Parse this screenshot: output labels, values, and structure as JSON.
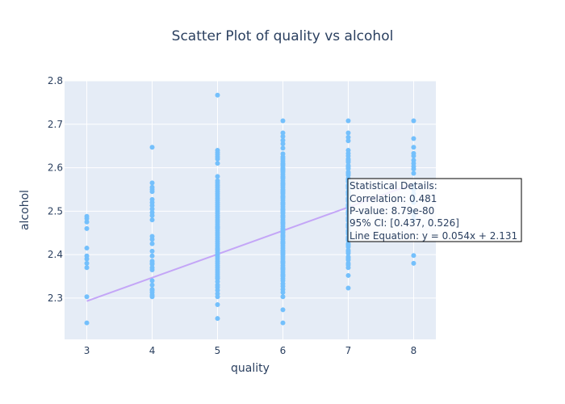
{
  "chart_data": {
    "type": "scatter",
    "title": "Scatter Plot of quality vs alcohol",
    "xlabel": "quality",
    "ylabel": "alcohol",
    "xlim": [
      2.66,
      8.34
    ],
    "ylim": [
      2.205,
      2.8
    ],
    "x_ticks": [
      3,
      4,
      5,
      6,
      7,
      8
    ],
    "y_ticks": [
      2.3,
      2.4,
      2.5,
      2.6,
      2.7,
      2.8
    ],
    "grid": true,
    "legend": "none",
    "point_color": "#74c0fc",
    "line_color": "#c4a6f7",
    "series": [
      {
        "x": [
          3,
          3,
          3,
          3,
          3,
          3,
          3,
          3,
          3,
          3,
          3,
          4,
          4,
          4,
          4,
          4,
          4,
          4,
          4,
          4,
          4,
          4,
          4,
          4,
          4,
          4,
          4,
          4,
          4,
          4,
          4,
          4,
          4,
          4,
          4,
          4,
          4,
          4,
          4,
          4,
          5,
          5,
          5,
          5,
          5,
          5,
          5,
          5,
          5,
          5,
          5,
          5,
          5,
          5,
          5,
          5,
          5,
          5,
          5,
          5,
          5,
          5,
          5,
          5,
          5,
          5,
          5,
          5,
          5,
          5,
          5,
          5,
          5,
          5,
          5,
          5,
          5,
          5,
          5,
          5,
          5,
          5,
          5,
          5,
          5,
          5,
          5,
          5,
          5,
          5,
          5,
          5,
          5,
          5,
          5,
          5,
          5,
          5,
          5,
          5,
          5,
          5,
          5,
          5,
          5,
          6,
          6,
          6,
          6,
          6,
          6,
          6,
          6,
          6,
          6,
          6,
          6,
          6,
          6,
          6,
          6,
          6,
          6,
          6,
          6,
          6,
          6,
          6,
          6,
          6,
          6,
          6,
          6,
          6,
          6,
          6,
          6,
          6,
          6,
          6,
          6,
          6,
          6,
          6,
          6,
          6,
          6,
          6,
          6,
          6,
          6,
          6,
          6,
          6,
          6,
          6,
          6,
          6,
          6,
          6,
          6,
          6,
          6,
          6,
          6,
          6,
          6,
          6,
          6,
          6,
          6,
          6,
          6,
          6,
          6,
          6,
          6,
          6,
          6,
          6,
          6,
          6,
          6,
          6,
          6,
          6,
          6,
          6,
          6,
          6,
          6,
          6,
          6,
          6,
          6,
          6,
          6,
          6,
          6,
          7,
          7,
          7,
          7,
          7,
          7,
          7,
          7,
          7,
          7,
          7,
          7,
          7,
          7,
          7,
          7,
          7,
          7,
          7,
          7,
          7,
          7,
          7,
          7,
          7,
          7,
          7,
          7,
          7,
          7,
          7,
          7,
          7,
          7,
          7,
          7,
          7,
          7,
          7,
          7,
          7,
          7,
          7,
          7,
          7,
          7,
          7,
          7,
          7,
          7,
          7,
          7,
          7,
          7,
          7,
          7,
          7,
          7,
          7,
          7,
          7,
          8,
          8,
          8,
          8,
          8,
          8,
          8,
          8,
          8,
          8,
          8,
          8,
          8,
          8,
          8,
          8,
          8,
          8,
          8,
          8
        ],
        "y": [
          2.243,
          2.303,
          2.37,
          2.38,
          2.39,
          2.397,
          2.415,
          2.46,
          2.475,
          2.483,
          2.488,
          2.303,
          2.307,
          2.313,
          2.32,
          2.33,
          2.34,
          2.365,
          2.37,
          2.38,
          2.385,
          2.397,
          2.408,
          2.425,
          2.435,
          2.442,
          2.48,
          2.49,
          2.497,
          2.505,
          2.513,
          2.52,
          2.527,
          2.545,
          2.55,
          2.555,
          2.565,
          2.647,
          2.318,
          2.378,
          2.253,
          2.285,
          2.303,
          2.31,
          2.318,
          2.325,
          2.33,
          2.338,
          2.345,
          2.35,
          2.355,
          2.36,
          2.365,
          2.37,
          2.375,
          2.38,
          2.385,
          2.39,
          2.395,
          2.4,
          2.405,
          2.41,
          2.415,
          2.42,
          2.425,
          2.43,
          2.435,
          2.44,
          2.445,
          2.45,
          2.455,
          2.46,
          2.465,
          2.47,
          2.475,
          2.48,
          2.485,
          2.49,
          2.495,
          2.5,
          2.505,
          2.51,
          2.515,
          2.52,
          2.525,
          2.53,
          2.535,
          2.54,
          2.545,
          2.55,
          2.555,
          2.56,
          2.565,
          2.57,
          2.58,
          2.61,
          2.62,
          2.625,
          2.63,
          2.635,
          2.64,
          2.767,
          2.346,
          2.412,
          2.462,
          2.243,
          2.273,
          2.303,
          2.313,
          2.32,
          2.327,
          2.333,
          2.34,
          2.345,
          2.35,
          2.355,
          2.36,
          2.365,
          2.37,
          2.375,
          2.38,
          2.385,
          2.39,
          2.395,
          2.4,
          2.405,
          2.41,
          2.415,
          2.42,
          2.425,
          2.43,
          2.435,
          2.44,
          2.445,
          2.45,
          2.455,
          2.46,
          2.465,
          2.47,
          2.475,
          2.48,
          2.485,
          2.49,
          2.495,
          2.5,
          2.505,
          2.51,
          2.515,
          2.52,
          2.525,
          2.53,
          2.535,
          2.54,
          2.545,
          2.55,
          2.555,
          2.56,
          2.565,
          2.57,
          2.575,
          2.58,
          2.585,
          2.59,
          2.595,
          2.6,
          2.605,
          2.61,
          2.615,
          2.62,
          2.625,
          2.632,
          2.645,
          2.655,
          2.663,
          2.672,
          2.68,
          2.708,
          2.352,
          2.368,
          2.383,
          2.408,
          2.428,
          2.443,
          2.458,
          2.473,
          2.488,
          2.503,
          2.518,
          2.533,
          2.548,
          2.563,
          2.578,
          2.593,
          2.608,
          2.402,
          2.452,
          2.497,
          2.542,
          2.597,
          2.323,
          2.352,
          2.37,
          2.38,
          2.388,
          2.395,
          2.403,
          2.41,
          2.418,
          2.425,
          2.433,
          2.44,
          2.448,
          2.455,
          2.463,
          2.47,
          2.478,
          2.485,
          2.493,
          2.5,
          2.508,
          2.515,
          2.523,
          2.53,
          2.538,
          2.545,
          2.553,
          2.56,
          2.568,
          2.575,
          2.583,
          2.59,
          2.598,
          2.605,
          2.613,
          2.62,
          2.627,
          2.633,
          2.64,
          2.662,
          2.67,
          2.68,
          2.708,
          2.376,
          2.392,
          2.407,
          2.422,
          2.437,
          2.452,
          2.467,
          2.482,
          2.497,
          2.512,
          2.527,
          2.542,
          2.557,
          2.572,
          2.587,
          2.602,
          2.617,
          2.434,
          2.38,
          2.398,
          2.48,
          2.49,
          2.5,
          2.52,
          2.53,
          2.54,
          2.55,
          2.56,
          2.587,
          2.597,
          2.603,
          2.61,
          2.617,
          2.627,
          2.633,
          2.647,
          2.667,
          2.708
        ]
      }
    ],
    "trendline": {
      "x": [
        3,
        8
      ],
      "y": [
        2.293,
        2.563
      ]
    },
    "annotation": {
      "lines": [
        "Statistical Details:",
        "Correlation: 0.481",
        "P-value: 8.79e-80",
        "95% CI: [0.437, 0.526]",
        "Line Equation: y = 0.054x + 2.131"
      ]
    }
  }
}
